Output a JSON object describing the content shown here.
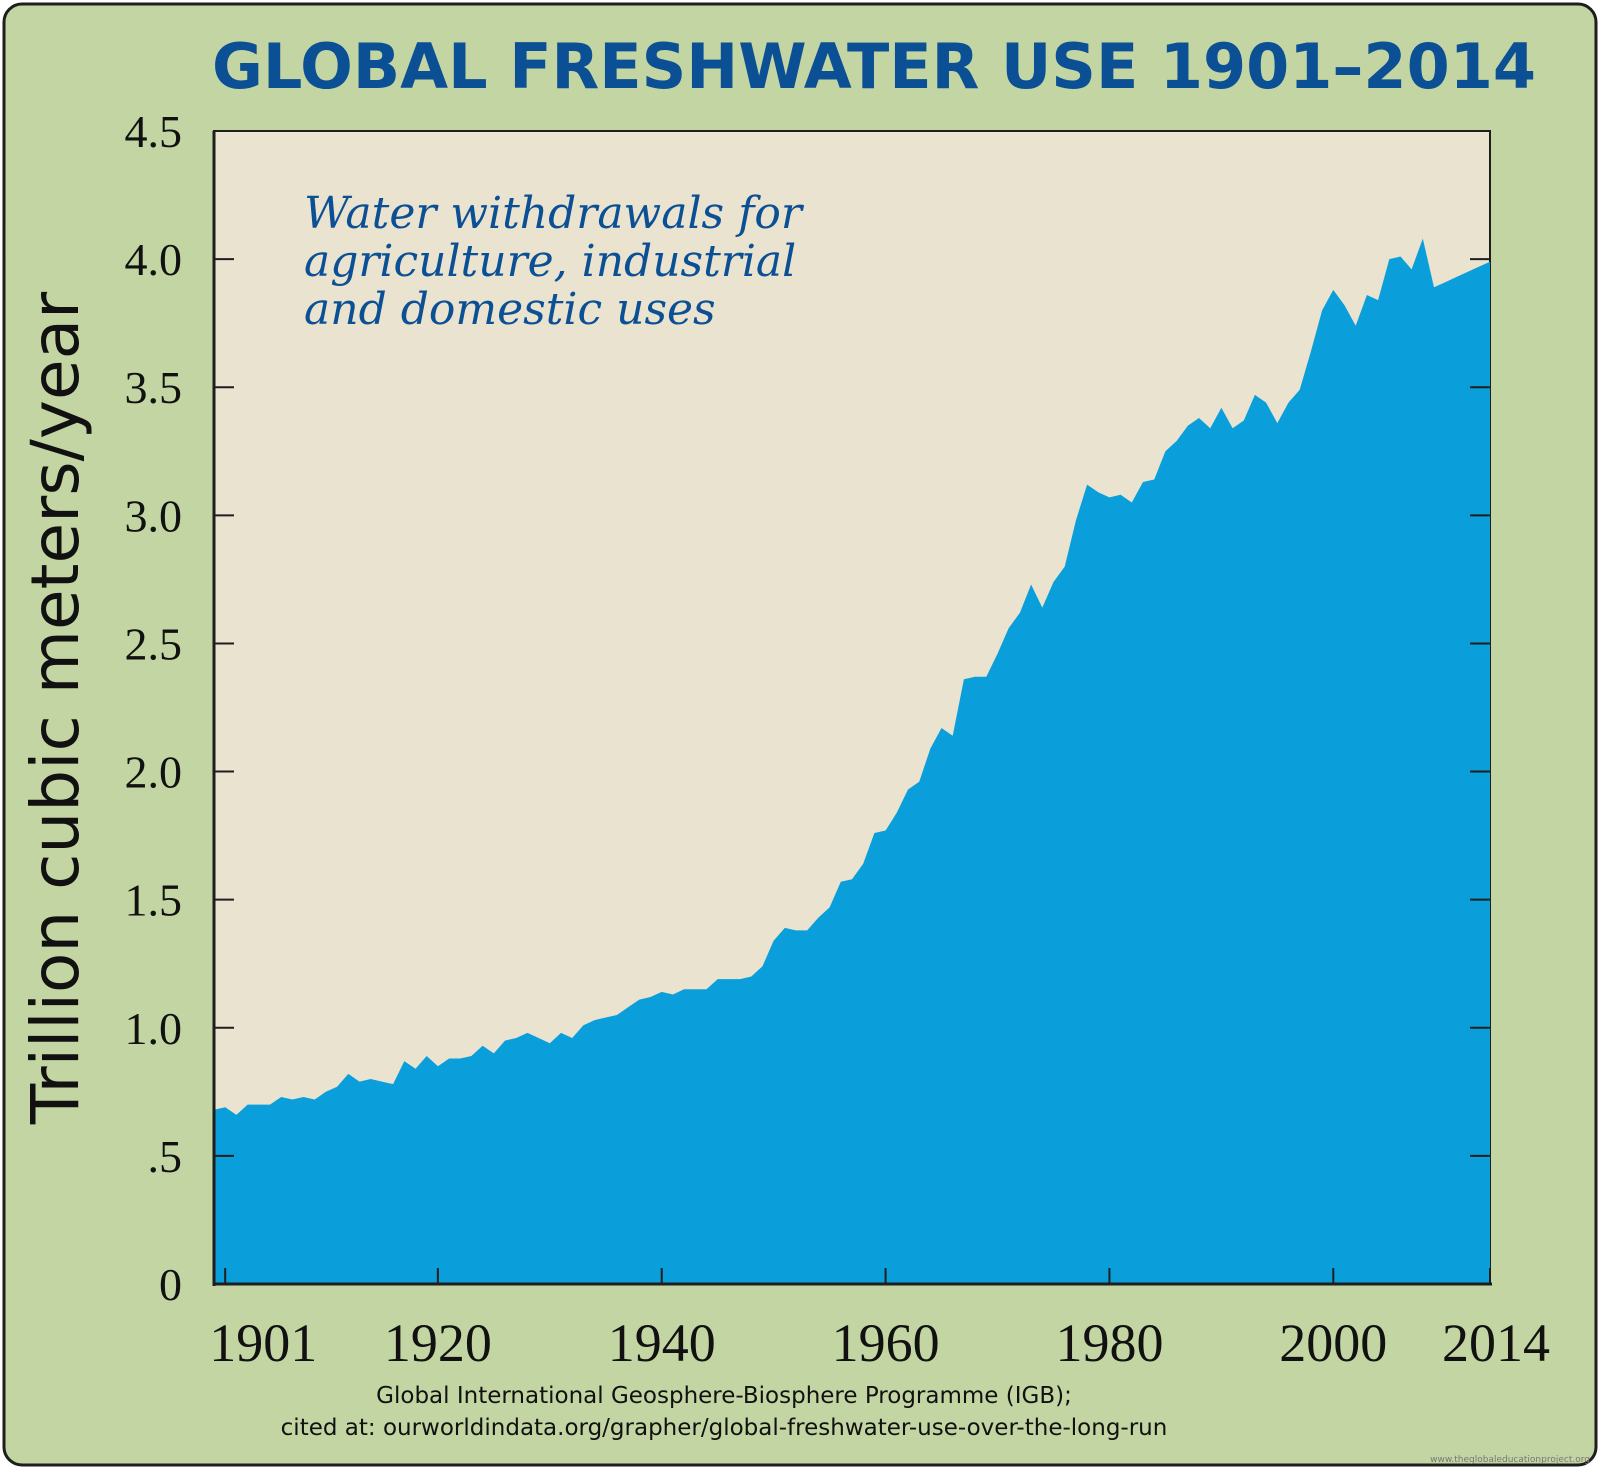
{
  "chart_data": {
    "type": "area",
    "title": "GLOBAL FRESHWATER USE 1901–2014",
    "annotation": [
      "Water withdrawals for",
      "agriculture, industrial",
      "and domestic uses"
    ],
    "ylabel": "Trillion cubic meters/year",
    "xlabel": "",
    "xlim": [
      1900,
      2014
    ],
    "ylim": [
      0,
      4.5
    ],
    "y_ticks": [
      {
        "value": 0,
        "label": "0"
      },
      {
        "value": 0.5,
        "label": ".5"
      },
      {
        "value": 1.0,
        "label": "1.0"
      },
      {
        "value": 1.5,
        "label": "1.5"
      },
      {
        "value": 2.0,
        "label": "2.0"
      },
      {
        "value": 2.5,
        "label": "2.5"
      },
      {
        "value": 3.0,
        "label": "3.0"
      },
      {
        "value": 3.5,
        "label": "3.5"
      },
      {
        "value": 4.0,
        "label": "4.0"
      },
      {
        "value": 4.5,
        "label": "4.5"
      }
    ],
    "x_ticks": [
      {
        "value": 1901,
        "label": "1901"
      },
      {
        "value": 1920,
        "label": "1920"
      },
      {
        "value": 1940,
        "label": "1940"
      },
      {
        "value": 1960,
        "label": "1960"
      },
      {
        "value": 1980,
        "label": "1980"
      },
      {
        "value": 2000,
        "label": "2000"
      },
      {
        "value": 2014,
        "label": "2014"
      }
    ],
    "grid": false,
    "colors": {
      "area": "#0a9fda",
      "plot_background": "#e9e3cf",
      "frame": "#c3d5a2",
      "title": "#0b4f95"
    },
    "series": [
      {
        "x": [
          1900,
          1901,
          1902,
          1903,
          1904,
          1905,
          1906,
          1907,
          1908,
          1909,
          1910,
          1911,
          1912,
          1913,
          1914,
          1915,
          1916,
          1917,
          1918,
          1919,
          1920,
          1921,
          1922,
          1923,
          1924,
          1925,
          1926,
          1927,
          1928,
          1929,
          1930,
          1931,
          1932,
          1933,
          1934,
          1935,
          1936,
          1937,
          1938,
          1939,
          1940,
          1941,
          1942,
          1943,
          1944,
          1945,
          1946,
          1947,
          1948,
          1949,
          1950,
          1951,
          1952,
          1953,
          1954,
          1955,
          1956,
          1957,
          1958,
          1959,
          1960,
          1961,
          1962,
          1963,
          1964,
          1965,
          1966,
          1967,
          1968,
          1969,
          1970,
          1971,
          1972,
          1973,
          1974,
          1975,
          1976,
          1977,
          1978,
          1979,
          1980,
          1981,
          1982,
          1983,
          1984,
          1985,
          1986,
          1987,
          1988,
          1989,
          1990,
          1991,
          1992,
          1993,
          1994,
          1995,
          1996,
          1997,
          1998,
          1999,
          2000,
          2001,
          2002,
          2003,
          2004,
          2005,
          2006,
          2007,
          2008,
          2009,
          2010,
          2011,
          2012,
          2013,
          2014
        ],
        "y": [
          0.68,
          0.69,
          0.66,
          0.7,
          0.7,
          0.7,
          0.73,
          0.72,
          0.73,
          0.72,
          0.75,
          0.77,
          0.82,
          0.79,
          0.8,
          0.79,
          0.78,
          0.87,
          0.84,
          0.89,
          0.85,
          0.88,
          0.88,
          0.89,
          0.93,
          0.9,
          0.95,
          0.96,
          0.98,
          0.96,
          0.94,
          0.98,
          0.96,
          1.01,
          1.03,
          1.04,
          1.05,
          1.08,
          1.11,
          1.12,
          1.14,
          1.13,
          1.15,
          1.15,
          1.15,
          1.19,
          1.19,
          1.19,
          1.2,
          1.24,
          1.34,
          1.39,
          1.38,
          1.38,
          1.43,
          1.47,
          1.57,
          1.58,
          1.64,
          1.76,
          1.77,
          1.84,
          1.93,
          1.96,
          2.09,
          2.17,
          2.14,
          2.36,
          2.37,
          2.37,
          2.46,
          2.56,
          2.62,
          2.73,
          2.64,
          2.74,
          2.8,
          2.98,
          3.12,
          3.09,
          3.07,
          3.08,
          3.05,
          3.13,
          3.14,
          3.25,
          3.29,
          3.35,
          3.38,
          3.34,
          3.42,
          3.34,
          3.37,
          3.47,
          3.44,
          3.36,
          3.44,
          3.49,
          3.64,
          3.8,
          3.88,
          3.82,
          3.74,
          3.86,
          3.84,
          4.0,
          4.01,
          3.96,
          4.08,
          3.89,
          3.91,
          3.93,
          3.95,
          3.97,
          3.99
        ]
      }
    ],
    "source": [
      "Global International Geosphere-Biosphere Programme (IGB);",
      "cited at: ourworldindata.org/grapher/global-freshwater-use-over-the-long-run"
    ],
    "watermark": "www.theglobaleducationproject.org"
  }
}
